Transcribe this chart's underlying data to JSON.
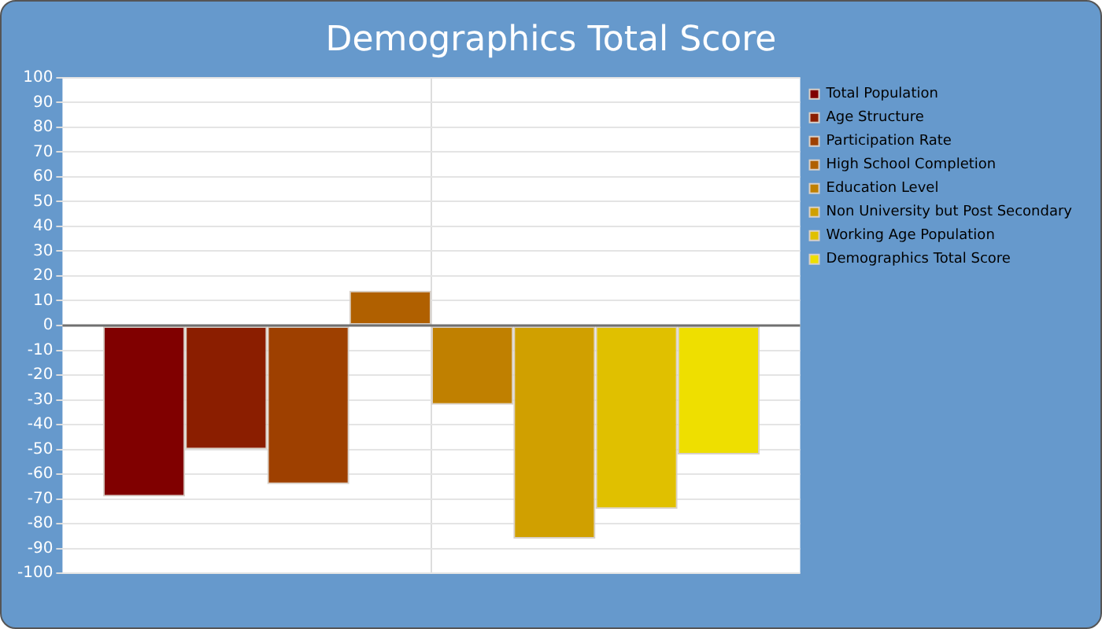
{
  "chart_data": {
    "type": "bar",
    "title": "Demographics Total Score",
    "categories": [
      null
    ],
    "series": [
      {
        "name": "Total Population",
        "color": "#800000",
        "values": [
          -69
        ]
      },
      {
        "name": "Age Structure",
        "color": "#8b1e00",
        "values": [
          -50
        ]
      },
      {
        "name": "Participation Rate",
        "color": "#9e4000",
        "values": [
          -64
        ]
      },
      {
        "name": "High School Completion",
        "color": "#b06000",
        "values": [
          14
        ]
      },
      {
        "name": "Education Level",
        "color": "#c08000",
        "values": [
          -32
        ]
      },
      {
        "name": "Non University but Post Secondary",
        "color": "#d0a000",
        "values": [
          -86
        ]
      },
      {
        "name": "Working Age Population",
        "color": "#e0c000",
        "values": [
          -74
        ]
      },
      {
        "name": "Demographics Total Score",
        "color": "#eedf00",
        "values": [
          -52
        ]
      }
    ],
    "ylim": [
      -100,
      100
    ],
    "yticks": [
      -100,
      -90,
      -80,
      -70,
      -60,
      -50,
      -40,
      -30,
      -20,
      -10,
      0,
      10,
      20,
      30,
      40,
      50,
      60,
      70,
      80,
      90,
      100
    ],
    "grid": true,
    "legend": "right"
  }
}
